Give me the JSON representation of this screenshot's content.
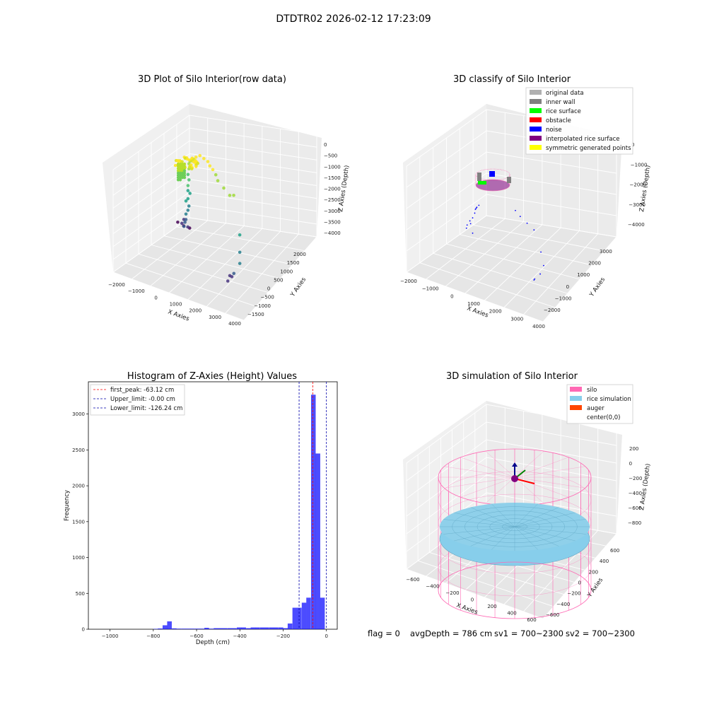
{
  "suptitle": "DTDTR02 2026-02-12 17:23:09",
  "status_line": {
    "flag": "flag = 0",
    "avg_depth": "avgDepth = 786 cm",
    "sv1": "sv1 = 700~2300",
    "sv2": "sv2 = 700~2300"
  },
  "chart_data": [
    {
      "type": "scatter3d",
      "title": "3D Plot of Silo Interior(row data)",
      "xlabel": "X Axies",
      "ylabel": "Y Axies",
      "zlabel": "Z Axies (Depth)",
      "xticks": [
        "−2000",
        "−1000",
        "0",
        "1000",
        "2000",
        "3000",
        "4000"
      ],
      "yticks": [
        "−1500",
        "−1000",
        "−500",
        "0",
        "500",
        "1000",
        "1500",
        "2000"
      ],
      "zticks": [
        "0",
        "−500",
        "−1000",
        "−1500",
        "−2000",
        "−2500",
        "−3000",
        "−3500",
        "−4000"
      ],
      "colormap": "viridis",
      "points": [
        [
          -2200,
          1500,
          -4000
        ],
        [
          -1900,
          1500,
          -4050
        ],
        [
          -1600,
          1500,
          -4050
        ],
        [
          -1300,
          800,
          -3500
        ],
        [
          -1200,
          800,
          -3350
        ],
        [
          -1000,
          800,
          -3550
        ],
        [
          -800,
          400,
          -3300
        ],
        [
          -750,
          400,
          -3150
        ],
        [
          -700,
          400,
          -3050
        ],
        [
          -600,
          300,
          -2800
        ],
        [
          -500,
          300,
          -2650
        ],
        [
          -450,
          300,
          -2500
        ],
        [
          -500,
          200,
          -2300
        ],
        [
          -400,
          200,
          -2200
        ],
        [
          -300,
          200,
          -2000
        ],
        [
          -350,
          150,
          -1900
        ],
        [
          -300,
          100,
          -1700
        ],
        [
          -250,
          100,
          -1500
        ],
        [
          -250,
          50,
          -1300
        ],
        [
          -200,
          50,
          -1100
        ],
        [
          -150,
          0,
          -900
        ],
        [
          -100,
          0,
          -800
        ],
        [
          0,
          0,
          -700
        ],
        [
          200,
          0,
          -600
        ],
        [
          400,
          0,
          -500
        ],
        [
          600,
          0,
          -550
        ],
        [
          800,
          0,
          -600
        ],
        [
          1000,
          -100,
          -650
        ],
        [
          1200,
          -150,
          -700
        ],
        [
          1400,
          -200,
          -800
        ],
        [
          1600,
          -300,
          -900
        ],
        [
          2000,
          -400,
          -1000
        ],
        [
          2400,
          -500,
          -1100
        ],
        [
          2600,
          -500,
          -1050
        ],
        [
          3300,
          -900,
          -2000
        ],
        [
          3400,
          -1000,
          -2500
        ],
        [
          3500,
          -1100,
          -2800
        ],
        [
          3200,
          -1100,
          -3200
        ],
        [
          3000,
          -1000,
          -3400
        ],
        [
          2600,
          -700,
          -3600
        ],
        [
          2500,
          -700,
          -3800
        ]
      ],
      "legend": []
    },
    {
      "type": "scatter3d",
      "title": "3D classify of Silo Interior",
      "xlabel": "X Axies",
      "ylabel": "Y Axies",
      "zlabel": "Z Axies (Depth)",
      "xticks": [
        "−2000",
        "−1000",
        "0",
        "1000",
        "2000",
        "3000",
        "4000"
      ],
      "yticks": [
        "−2000",
        "−1000",
        "0",
        "1000",
        "2000",
        "3000"
      ],
      "zticks": [
        "0",
        "−1000",
        "−2000",
        "−3000",
        "−4000"
      ],
      "legend": [
        {
          "label": "original data",
          "color": "#b0b0b0"
        },
        {
          "label": "inner wall",
          "color": "#808080"
        },
        {
          "label": "rice surface",
          "color": "#00ff00"
        },
        {
          "label": "obstacle",
          "color": "#ff0000"
        },
        {
          "label": "noise",
          "color": "#0000ff"
        },
        {
          "label": "interpolated rice surface",
          "color": "#800080"
        },
        {
          "label": "symmetric generated points",
          "color": "#ffff00"
        }
      ],
      "noise_points": [
        [
          -2000,
          1500,
          -4000
        ],
        [
          -1700,
          1500,
          -4100
        ],
        [
          -1500,
          800,
          -3500
        ],
        [
          -1200,
          600,
          -3300
        ],
        [
          -1100,
          400,
          -3100
        ],
        [
          -900,
          300,
          -2900
        ],
        [
          -800,
          300,
          -2700
        ],
        [
          -700,
          200,
          -2500
        ],
        [
          -600,
          100,
          -2400
        ],
        [
          -500,
          0,
          -2300
        ],
        [
          -400,
          0,
          -2200
        ],
        [
          1500,
          -200,
          -1800
        ],
        [
          1800,
          -300,
          -1900
        ],
        [
          2200,
          -400,
          -2000
        ],
        [
          2600,
          -500,
          -2100
        ],
        [
          3200,
          -900,
          -2600
        ],
        [
          3400,
          -1000,
          -3000
        ],
        [
          3300,
          -1100,
          -3300
        ],
        [
          3100,
          -1200,
          -3500
        ],
        [
          3000,
          -1100,
          -3600
        ]
      ]
    },
    {
      "type": "bar",
      "title": "Histogram of Z-Axies (Height) Values",
      "xlabel": "Depth (cm)",
      "ylabel": "Frequency",
      "xlim": [
        -1100,
        50
      ],
      "ylim": [
        0,
        3450
      ],
      "xticks": [
        -1000,
        -800,
        -600,
        -400,
        -200,
        0
      ],
      "xticklabels": [
        "−1000",
        "−800",
        "−600",
        "−400",
        "−200",
        "0"
      ],
      "yticks": [
        0,
        500,
        1000,
        1500,
        2000,
        2500,
        3000
      ],
      "bar_color": "#0000ff",
      "bin_width": 21.4,
      "bins": [
        {
          "x": -800,
          "value": 5
        },
        {
          "x": -779,
          "value": 10
        },
        {
          "x": -757,
          "value": 55
        },
        {
          "x": -736,
          "value": 110
        },
        {
          "x": -714,
          "value": 12
        },
        {
          "x": -693,
          "value": 8
        },
        {
          "x": -671,
          "value": 8
        },
        {
          "x": -650,
          "value": 8
        },
        {
          "x": -629,
          "value": 8
        },
        {
          "x": -607,
          "value": 8
        },
        {
          "x": -586,
          "value": 8
        },
        {
          "x": -564,
          "value": 20
        },
        {
          "x": -543,
          "value": 8
        },
        {
          "x": -521,
          "value": 15
        },
        {
          "x": -500,
          "value": 15
        },
        {
          "x": -479,
          "value": 15
        },
        {
          "x": -457,
          "value": 15
        },
        {
          "x": -436,
          "value": 15
        },
        {
          "x": -414,
          "value": 25
        },
        {
          "x": -393,
          "value": 25
        },
        {
          "x": -371,
          "value": 15
        },
        {
          "x": -350,
          "value": 25
        },
        {
          "x": -329,
          "value": 25
        },
        {
          "x": -307,
          "value": 25
        },
        {
          "x": -286,
          "value": 25
        },
        {
          "x": -264,
          "value": 25
        },
        {
          "x": -243,
          "value": 25
        },
        {
          "x": -221,
          "value": 25
        },
        {
          "x": -200,
          "value": 15
        },
        {
          "x": -179,
          "value": 80
        },
        {
          "x": -157,
          "value": 300
        },
        {
          "x": -136,
          "value": 300
        },
        {
          "x": -114,
          "value": 370
        },
        {
          "x": -93,
          "value": 440
        },
        {
          "x": -71,
          "value": 3270
        },
        {
          "x": -50,
          "value": 2450
        },
        {
          "x": -29,
          "value": 440
        },
        {
          "x": -7,
          "value": 0
        }
      ],
      "lines": [
        {
          "label": "first_peak: -63.12 cm",
          "x": -63.12,
          "color": "#ff0000"
        },
        {
          "label": "Upper_limit: -0.00 cm",
          "x": 0,
          "color": "#0000aa"
        },
        {
          "label": "Lower_limit: -126.24 cm",
          "x": -126.24,
          "color": "#0000aa"
        }
      ]
    },
    {
      "type": "surface3d",
      "title": "3D simulation of Silo Interior",
      "xlabel": "X Axies",
      "ylabel": "Y Axies",
      "zlabel": "Z Axies (Depth)",
      "xticks": [
        "−600",
        "−400",
        "−200",
        "0",
        "200",
        "400",
        "600"
      ],
      "yticks": [
        "−600",
        "−400",
        "−200",
        "0",
        "200",
        "400",
        "600"
      ],
      "zticks": [
        "200",
        "0",
        "−200",
        "−400",
        "−600",
        "−800"
      ],
      "legend": [
        {
          "label": "silo",
          "color": "#ff69b4"
        },
        {
          "label": "rice simulation",
          "color": "#87ceeb"
        },
        {
          "label": "auger",
          "color": "#ff4500"
        },
        {
          "label": "center(0,0)",
          "color": "#800080"
        }
      ],
      "silo_radius": 700,
      "rice_depth": -786
    }
  ]
}
